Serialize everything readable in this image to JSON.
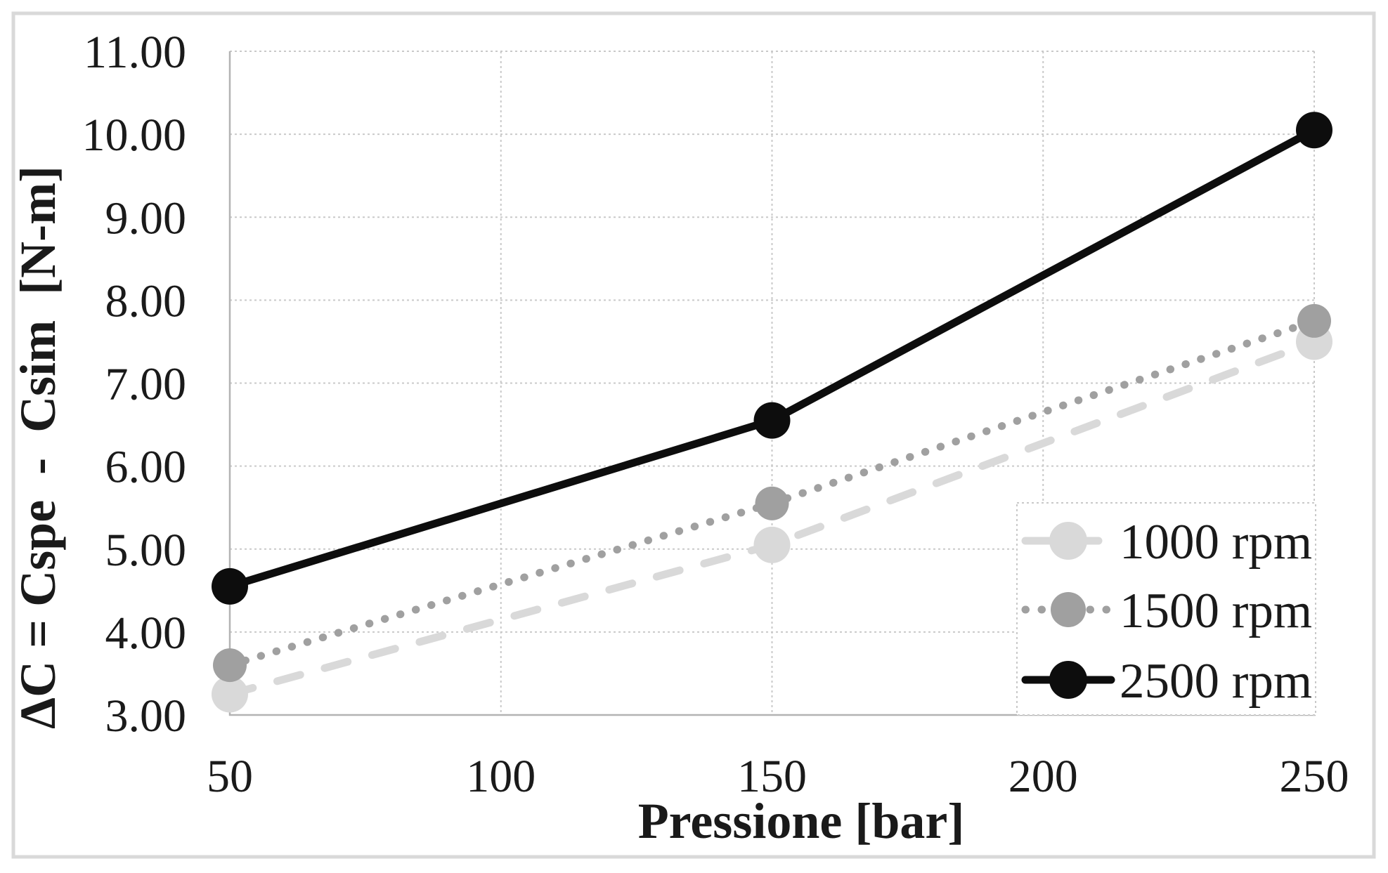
{
  "chart_data": {
    "type": "line",
    "title": "",
    "xlabel": "Pressione [bar]",
    "ylabel": "ΔC = Cspe  -  Csim  [N-m]",
    "x": [
      50,
      150,
      250
    ],
    "series": [
      {
        "name": "1000 rpm",
        "values": [
          3.25,
          5.05,
          7.5
        ],
        "color": "#d9d9d9",
        "line_style": "dashed",
        "marker": "circle"
      },
      {
        "name": "1500 rpm",
        "values": [
          3.6,
          5.55,
          7.75
        ],
        "color": "#a0a0a0",
        "line_style": "dotted",
        "marker": "circle"
      },
      {
        "name": "2500 rpm",
        "values": [
          4.55,
          6.55,
          10.05
        ],
        "color": "#0d0d0d",
        "line_style": "solid",
        "marker": "circle"
      }
    ],
    "x_ticks": [
      50,
      100,
      150,
      200,
      250
    ],
    "y_tick_labels": [
      "11.00",
      "10.00",
      "9.00",
      "8.00",
      "7.00",
      "6.00",
      "5.00",
      "4.00",
      "3.00"
    ],
    "xlim": [
      50,
      250
    ],
    "ylim": [
      3,
      11
    ],
    "grid": true,
    "legend_position": "inside bottom-right"
  },
  "colors": {
    "gridline": "#c9c9c9",
    "axis_line": "#b3b3b3",
    "text": "#1a1a1a",
    "figure_frame": "#d9d9d9",
    "legend_border": "#c9c9c9",
    "legend_background": "#ffffff"
  }
}
